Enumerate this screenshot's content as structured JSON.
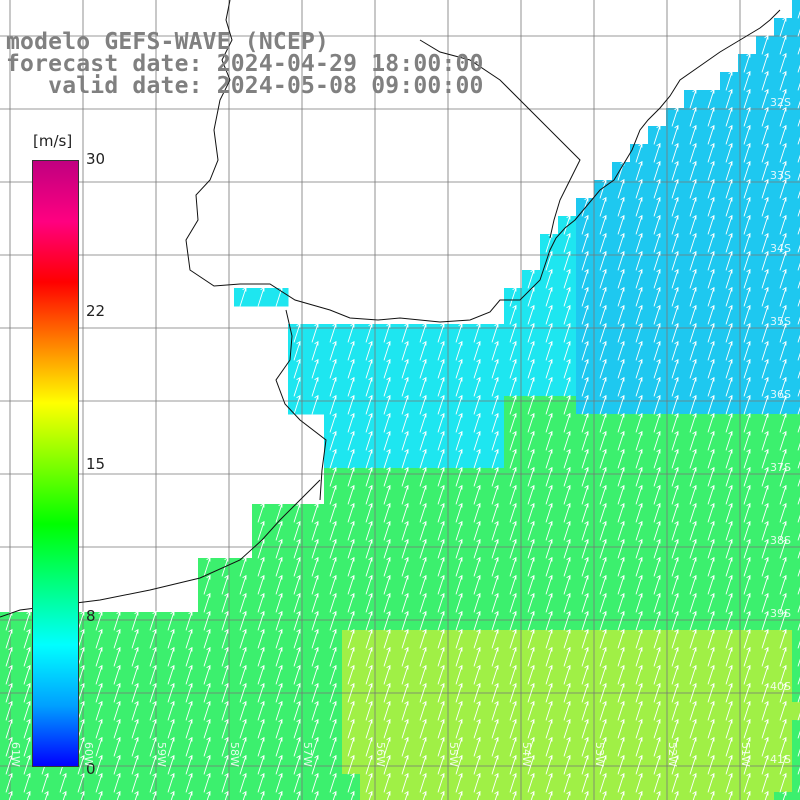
{
  "title": {
    "line1": "modelo GEFS-WAVE (NCEP)",
    "line2": "forecast date: 2024-04-29 18:00:00",
    "line3": "   valid date: 2024-05-08 09:00:00"
  },
  "colorbar": {
    "unit": "[m/s]",
    "ticks": [
      "30",
      "22",
      "15",
      "8",
      "0"
    ],
    "range": [
      0,
      30
    ],
    "colors": [
      "#0000ff",
      "#00a0ff",
      "#00ffff",
      "#00ff80",
      "#00ff00",
      "#80ff00",
      "#ffff00",
      "#ff8000",
      "#ff0000",
      "#ff0080",
      "#c00080"
    ]
  },
  "map": {
    "lat_labels": [
      "32S",
      "33S",
      "34S",
      "35S",
      "36S",
      "37S",
      "38S",
      "39S",
      "40S",
      "41S"
    ],
    "lon_labels": [
      "61W",
      "60W",
      "59W",
      "58W",
      "57W",
      "56W",
      "55W",
      "54W",
      "53W",
      "52W",
      "51W"
    ],
    "ocean_colors": {
      "cyan": "#1ee6f0",
      "blue": "#1ec8f0",
      "green": "#3cf06e",
      "yellowgreen": "#a0f046"
    }
  }
}
